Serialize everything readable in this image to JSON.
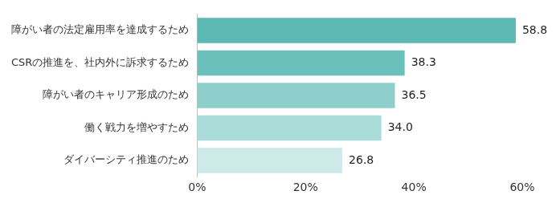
{
  "chart_data": {
    "type": "bar",
    "orientation": "horizontal",
    "categories": [
      "障がい者の法定雇用率を達成するため",
      "CSRの推進を、社内外に訴求するため",
      "障がい者のキャリア形成のため",
      "働く戦力を増やすため",
      "ダイバーシティ推進のため"
    ],
    "values": [
      58.8,
      38.3,
      36.5,
      34.0,
      26.8
    ],
    "value_labels": [
      "58.8",
      "38.3",
      "36.5",
      "34.0",
      "26.8"
    ],
    "colors": [
      "#5cb8b2",
      "#6cc0bb",
      "#8ecfcc",
      "#aadcd9",
      "#cde9e8"
    ],
    "xlim": [
      0,
      60
    ],
    "xticks": [
      {
        "value": 0,
        "label": "0%"
      },
      {
        "value": 20,
        "label": "20%"
      },
      {
        "value": 40,
        "label": "40%"
      },
      {
        "value": 60,
        "label": "60%"
      }
    ],
    "grid": false,
    "data_labels": true
  }
}
